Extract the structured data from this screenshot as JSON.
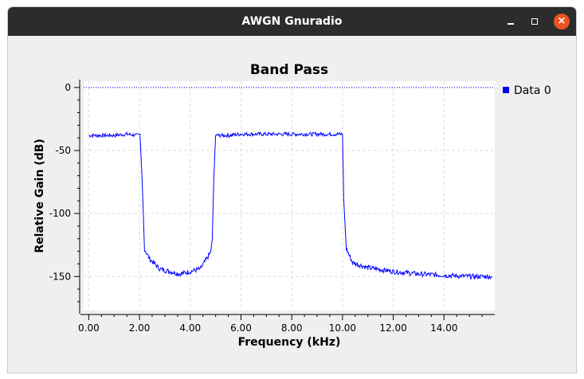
{
  "window": {
    "title": "AWGN Gnuradio"
  },
  "window_controls": {
    "minimize": "minimize",
    "maximize": "maximize",
    "close": "close"
  },
  "colors": {
    "titlebar": "#2c2c2c",
    "close": "#e95420",
    "trace": "#0000ff",
    "background": "#efefef"
  },
  "legend": {
    "label": "Data 0"
  },
  "chart_data": {
    "type": "line",
    "title": "Band Pass",
    "xlabel": "Frequency (kHz)",
    "ylabel": "Relative Gain (dB)",
    "xlim": [
      -0.2,
      16
    ],
    "ylim": [
      -177,
      5
    ],
    "xticks": [
      "0.00",
      "2.00",
      "4.00",
      "6.00",
      "8.00",
      "10.00",
      "12.00",
      "14.00"
    ],
    "xtick_values": [
      0,
      2,
      4,
      6,
      8,
      10,
      12,
      14
    ],
    "yticks": [
      "0",
      "-50",
      "-100",
      "-150"
    ],
    "ytick_values": [
      0,
      -50,
      -100,
      -150
    ],
    "grid": true,
    "legend_position": "right",
    "reference_line": {
      "y": 0,
      "style": "dotted"
    },
    "series": [
      {
        "name": "Data 0",
        "color": "#0000ff",
        "x": [
          0.0,
          0.5,
          1.0,
          1.5,
          1.9,
          2.02,
          2.1,
          2.2,
          2.4,
          2.8,
          3.2,
          3.6,
          4.0,
          4.4,
          4.8,
          4.87,
          4.93,
          5.0,
          5.5,
          6.0,
          7.0,
          8.0,
          9.0,
          9.9,
          10.0,
          10.05,
          10.15,
          10.4,
          11.0,
          12.0,
          13.0,
          14.0,
          15.0,
          15.9
        ],
        "y": [
          -38,
          -38,
          -38,
          -37,
          -38,
          -37,
          -72,
          -128,
          -136,
          -144,
          -146,
          -148,
          -146,
          -144,
          -131,
          -120,
          -72,
          -38,
          -38,
          -37,
          -37,
          -37,
          -37,
          -37,
          -37,
          -90,
          -128,
          -139,
          -143,
          -146,
          -148,
          -149,
          -150,
          -150
        ]
      }
    ]
  }
}
